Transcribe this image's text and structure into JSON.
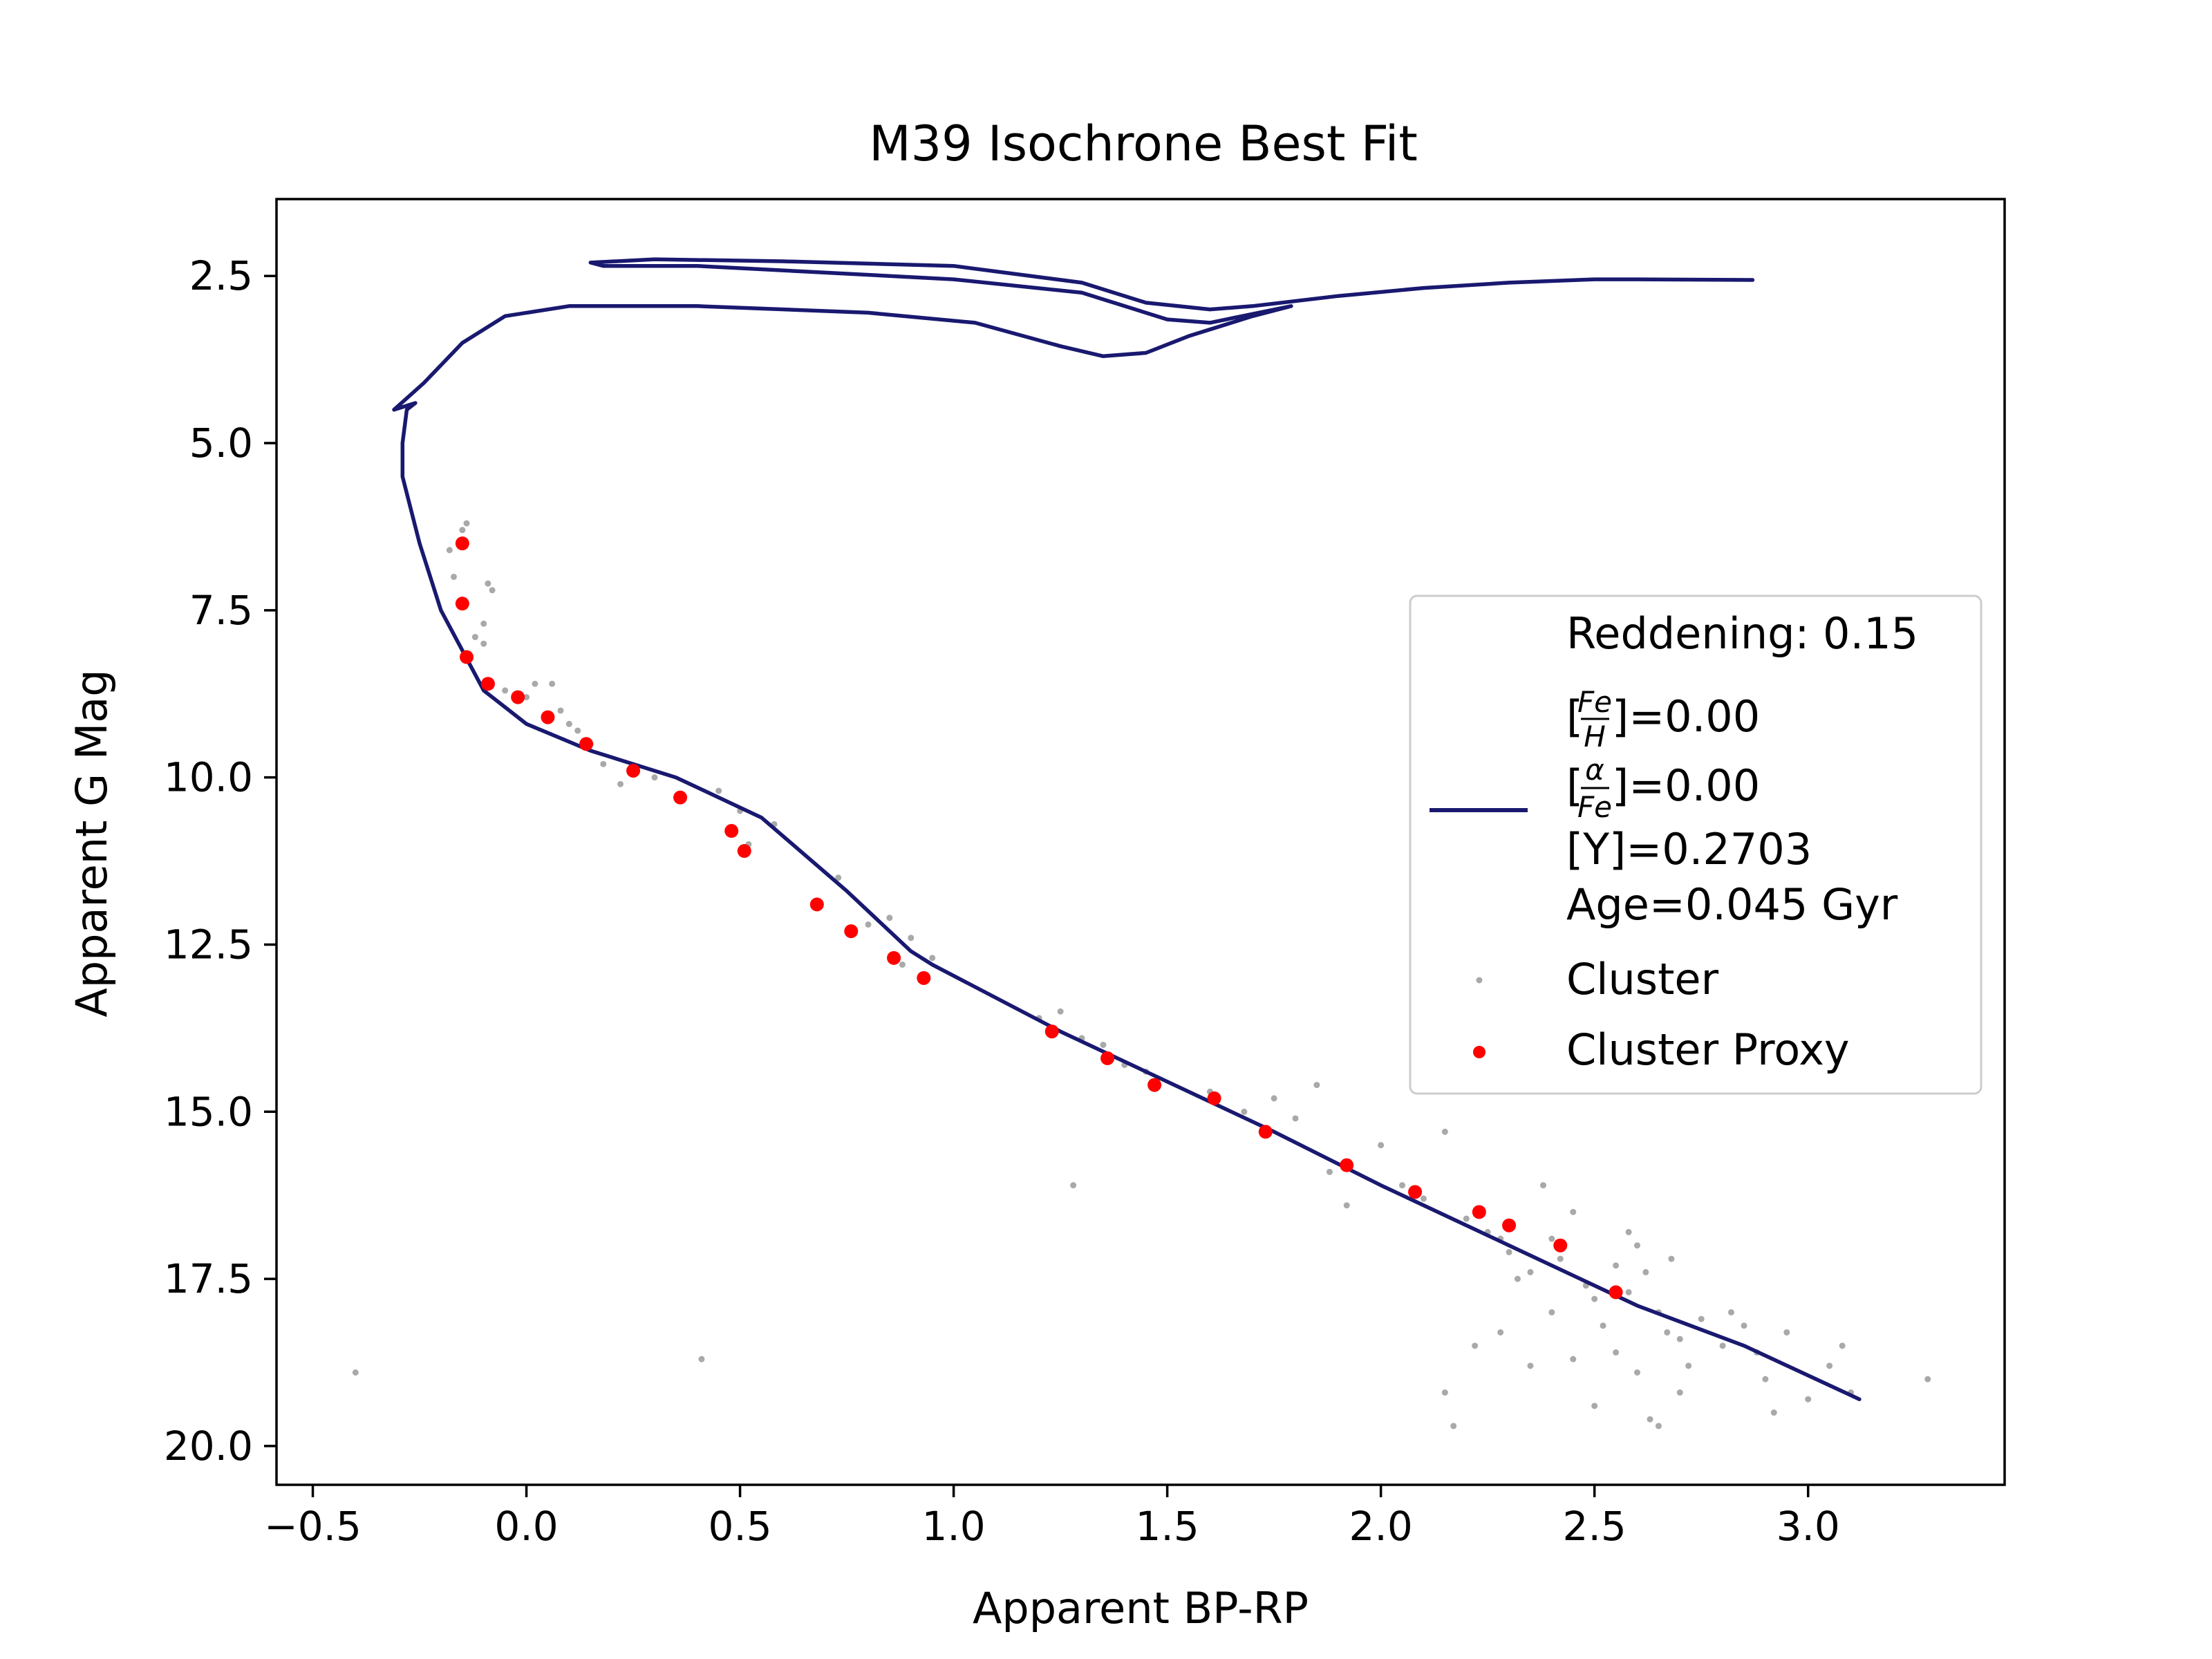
{
  "chart_data": {
    "type": "scatter",
    "title": "M39 Isochrone Best Fit",
    "xlabel": "Apparent BP-RP",
    "ylabel": "Apparent G Mag",
    "xlim": [
      -0.585,
      3.46
    ],
    "ylim": [
      20.58,
      1.35
    ],
    "y_inverted": true,
    "x_ticks": [
      {
        "value": -0.5,
        "label": "−0.5"
      },
      {
        "value": 0.0,
        "label": "0.0"
      },
      {
        "value": 0.5,
        "label": "0.5"
      },
      {
        "value": 1.0,
        "label": "1.0"
      },
      {
        "value": 1.5,
        "label": "1.5"
      },
      {
        "value": 2.0,
        "label": "2.0"
      },
      {
        "value": 2.5,
        "label": "2.5"
      },
      {
        "value": 3.0,
        "label": "3.0"
      }
    ],
    "y_ticks": [
      {
        "value": 2.5,
        "label": "2.5"
      },
      {
        "value": 5.0,
        "label": "5.0"
      },
      {
        "value": 7.5,
        "label": "7.5"
      },
      {
        "value": 10.0,
        "label": "10.0"
      },
      {
        "value": 12.5,
        "label": "12.5"
      },
      {
        "value": 15.0,
        "label": "15.0"
      },
      {
        "value": 17.5,
        "label": "17.5"
      },
      {
        "value": 20.0,
        "label": "20.0"
      }
    ],
    "grid": false,
    "legend_position": "center-right",
    "colors": {
      "isochrone": "#191970",
      "cluster": "#a9a9a9",
      "proxy": "#ff0000"
    },
    "legend": {
      "reddening": "Reddening: 0.15",
      "feh_prefix": "[",
      "feh_num": "Fe",
      "feh_den": "H",
      "feh_value": "]=0.00",
      "afe_prefix": "[",
      "afe_num": "α",
      "afe_den": "Fe",
      "afe_value": "]=0.00",
      "y_label": "[Y]=0.2703",
      "age_label": "Age=0.045 Gyr",
      "cluster_label": "Cluster",
      "proxy_label": "Cluster Proxy"
    },
    "series": [
      {
        "kind": "line",
        "points": [
          [
            3.12,
            19.3
          ],
          [
            2.85,
            18.5
          ],
          [
            2.6,
            17.9
          ],
          [
            2.3,
            17.0
          ],
          [
            2.0,
            16.1
          ],
          [
            1.75,
            15.3
          ],
          [
            1.55,
            14.7
          ],
          [
            1.25,
            13.8
          ],
          [
            0.95,
            12.8
          ],
          [
            0.9,
            12.6
          ],
          [
            0.75,
            11.7
          ],
          [
            0.55,
            10.6
          ],
          [
            0.35,
            10.0
          ],
          [
            0.15,
            9.6
          ],
          [
            0.0,
            9.2
          ],
          [
            -0.1,
            8.7
          ],
          [
            -0.2,
            7.5
          ],
          [
            -0.25,
            6.5
          ],
          [
            -0.29,
            5.5
          ],
          [
            -0.29,
            5.0
          ],
          [
            -0.28,
            4.5
          ],
          [
            -0.26,
            4.4
          ],
          [
            -0.31,
            4.5
          ],
          [
            -0.24,
            4.1
          ],
          [
            -0.15,
            3.5
          ],
          [
            -0.05,
            3.1
          ],
          [
            0.1,
            2.95
          ],
          [
            0.4,
            2.95
          ],
          [
            0.8,
            3.05
          ],
          [
            1.05,
            3.2
          ],
          [
            1.25,
            3.55
          ],
          [
            1.35,
            3.7
          ],
          [
            1.45,
            3.65
          ],
          [
            1.55,
            3.4
          ],
          [
            1.7,
            3.1
          ],
          [
            1.79,
            2.95
          ],
          [
            1.6,
            3.2
          ],
          [
            1.5,
            3.15
          ],
          [
            1.3,
            2.75
          ],
          [
            1.0,
            2.55
          ],
          [
            0.7,
            2.45
          ],
          [
            0.4,
            2.35
          ],
          [
            0.18,
            2.35
          ],
          [
            0.15,
            2.3
          ],
          [
            0.3,
            2.25
          ],
          [
            0.6,
            2.28
          ],
          [
            1.0,
            2.35
          ],
          [
            1.3,
            2.6
          ],
          [
            1.45,
            2.9
          ],
          [
            1.6,
            3.0
          ],
          [
            1.7,
            2.95
          ],
          [
            1.9,
            2.8
          ],
          [
            2.1,
            2.68
          ],
          [
            2.3,
            2.6
          ],
          [
            2.5,
            2.55
          ],
          [
            2.6,
            2.55
          ],
          [
            2.87,
            2.56
          ]
        ]
      },
      {
        "kind": "points",
        "name": "Cluster",
        "points": [
          [
            -0.18,
            6.6
          ],
          [
            -0.15,
            6.3
          ],
          [
            -0.14,
            6.2
          ],
          [
            -0.17,
            7.0
          ],
          [
            -0.09,
            7.1
          ],
          [
            -0.08,
            7.2
          ],
          [
            -0.1,
            7.7
          ],
          [
            -0.12,
            7.9
          ],
          [
            -0.1,
            8.0
          ],
          [
            -0.05,
            8.7
          ],
          [
            0.0,
            8.8
          ],
          [
            0.02,
            8.6
          ],
          [
            0.06,
            8.6
          ],
          [
            0.08,
            9.0
          ],
          [
            0.1,
            9.2
          ],
          [
            0.12,
            9.3
          ],
          [
            0.15,
            9.5
          ],
          [
            0.18,
            9.8
          ],
          [
            0.22,
            10.1
          ],
          [
            0.3,
            10.0
          ],
          [
            0.45,
            10.2
          ],
          [
            0.5,
            10.5
          ],
          [
            0.58,
            10.7
          ],
          [
            0.52,
            11.0
          ],
          [
            0.73,
            11.5
          ],
          [
            0.8,
            12.2
          ],
          [
            0.85,
            12.1
          ],
          [
            0.9,
            12.4
          ],
          [
            0.88,
            12.8
          ],
          [
            0.95,
            12.7
          ],
          [
            1.25,
            13.5
          ],
          [
            1.2,
            13.6
          ],
          [
            1.3,
            13.9
          ],
          [
            1.35,
            14.0
          ],
          [
            1.4,
            14.3
          ],
          [
            1.45,
            14.4
          ],
          [
            1.6,
            14.7
          ],
          [
            1.68,
            15.0
          ],
          [
            1.75,
            14.8
          ],
          [
            1.8,
            15.1
          ],
          [
            1.85,
            14.6
          ],
          [
            1.92,
            15.8
          ],
          [
            1.88,
            15.9
          ],
          [
            2.0,
            15.5
          ],
          [
            2.05,
            16.1
          ],
          [
            2.1,
            16.3
          ],
          [
            2.15,
            15.3
          ],
          [
            2.2,
            16.6
          ],
          [
            2.25,
            16.8
          ],
          [
            2.28,
            16.9
          ],
          [
            2.3,
            17.1
          ],
          [
            2.32,
            17.5
          ],
          [
            2.35,
            17.4
          ],
          [
            2.38,
            16.1
          ],
          [
            2.4,
            16.9
          ],
          [
            2.42,
            17.2
          ],
          [
            2.45,
            16.5
          ],
          [
            2.48,
            17.6
          ],
          [
            2.5,
            17.8
          ],
          [
            2.52,
            18.2
          ],
          [
            2.55,
            17.3
          ],
          [
            2.58,
            16.8
          ],
          [
            2.6,
            17.0
          ],
          [
            2.62,
            17.4
          ],
          [
            2.65,
            18.0
          ],
          [
            2.67,
            18.3
          ],
          [
            2.7,
            18.4
          ],
          [
            2.72,
            18.8
          ],
          [
            2.75,
            18.1
          ],
          [
            2.8,
            18.5
          ],
          [
            2.82,
            18.0
          ],
          [
            2.85,
            18.2
          ],
          [
            2.88,
            18.6
          ],
          [
            2.9,
            19.0
          ],
          [
            2.92,
            19.5
          ],
          [
            2.95,
            18.3
          ],
          [
            3.0,
            19.3
          ],
          [
            3.05,
            18.8
          ],
          [
            3.08,
            18.5
          ],
          [
            3.1,
            19.2
          ],
          [
            3.28,
            19.0
          ],
          [
            2.5,
            19.4
          ],
          [
            2.63,
            19.6
          ],
          [
            2.65,
            19.7
          ],
          [
            2.7,
            19.2
          ],
          [
            2.55,
            18.6
          ],
          [
            2.6,
            18.9
          ],
          [
            2.45,
            18.7
          ],
          [
            2.35,
            18.8
          ],
          [
            2.28,
            18.3
          ],
          [
            2.22,
            18.5
          ],
          [
            2.15,
            19.2
          ],
          [
            2.17,
            19.7
          ],
          [
            1.28,
            16.1
          ],
          [
            -0.4,
            18.9
          ],
          [
            0.41,
            18.7
          ],
          [
            1.92,
            16.4
          ],
          [
            2.68,
            17.2
          ],
          [
            2.58,
            17.7
          ],
          [
            2.4,
            18.0
          ]
        ]
      },
      {
        "kind": "points",
        "name": "Cluster Proxy",
        "points": [
          [
            -0.15,
            6.5
          ],
          [
            -0.15,
            7.4
          ],
          [
            -0.14,
            8.2
          ],
          [
            -0.09,
            8.6
          ],
          [
            -0.02,
            8.8
          ],
          [
            0.05,
            9.1
          ],
          [
            0.14,
            9.5
          ],
          [
            0.25,
            9.9
          ],
          [
            0.36,
            10.3
          ],
          [
            0.48,
            10.8
          ],
          [
            0.51,
            11.1
          ],
          [
            0.68,
            11.9
          ],
          [
            0.76,
            12.3
          ],
          [
            0.86,
            12.7
          ],
          [
            0.93,
            13.0
          ],
          [
            1.23,
            13.8
          ],
          [
            1.36,
            14.2
          ],
          [
            1.47,
            14.6
          ],
          [
            1.61,
            14.8
          ],
          [
            1.73,
            15.3
          ],
          [
            1.92,
            15.8
          ],
          [
            2.08,
            16.2
          ],
          [
            2.23,
            16.5
          ],
          [
            2.3,
            16.7
          ],
          [
            2.42,
            17.0
          ],
          [
            2.55,
            17.7
          ]
        ]
      }
    ]
  }
}
